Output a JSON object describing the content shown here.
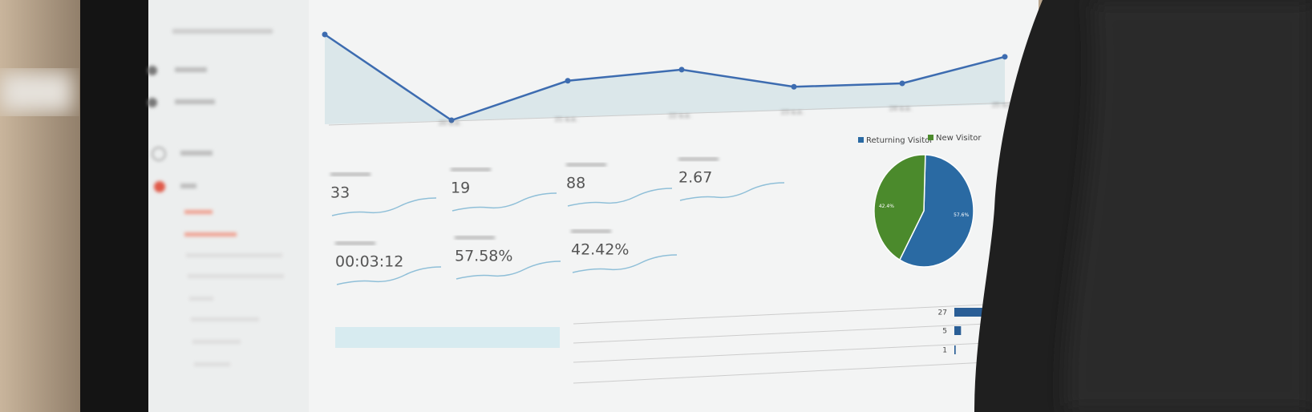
{
  "line_chart": {
    "categories": [
      null,
      "20 พ.ค.",
      "21 พ.ค.",
      "22 พ.ค.",
      "23 พ.ค.",
      "24 พ.ค.",
      "25 พ.ค."
    ],
    "values": [
      100,
      0,
      46,
      59,
      39,
      43,
      74
    ],
    "ylim": [
      0,
      100
    ],
    "color": "#3d6cb0"
  },
  "metrics": [
    "33",
    "19",
    "88",
    "2.67",
    "00:03:12",
    "57.58%",
    "42.42%"
  ],
  "pie": {
    "type": "pie",
    "series": [
      {
        "name": "Returning Visitor",
        "color": "#2a6aa3",
        "values": [
          57.6
        ],
        "value_labels": [
          "57.6%"
        ]
      },
      {
        "name": "New Visitor",
        "color": "#4b8a2c",
        "values": [
          42.4
        ],
        "value_labels": [
          "42.4%"
        ]
      }
    ]
  },
  "table": {
    "values": [
      27,
      5,
      1
    ]
  }
}
